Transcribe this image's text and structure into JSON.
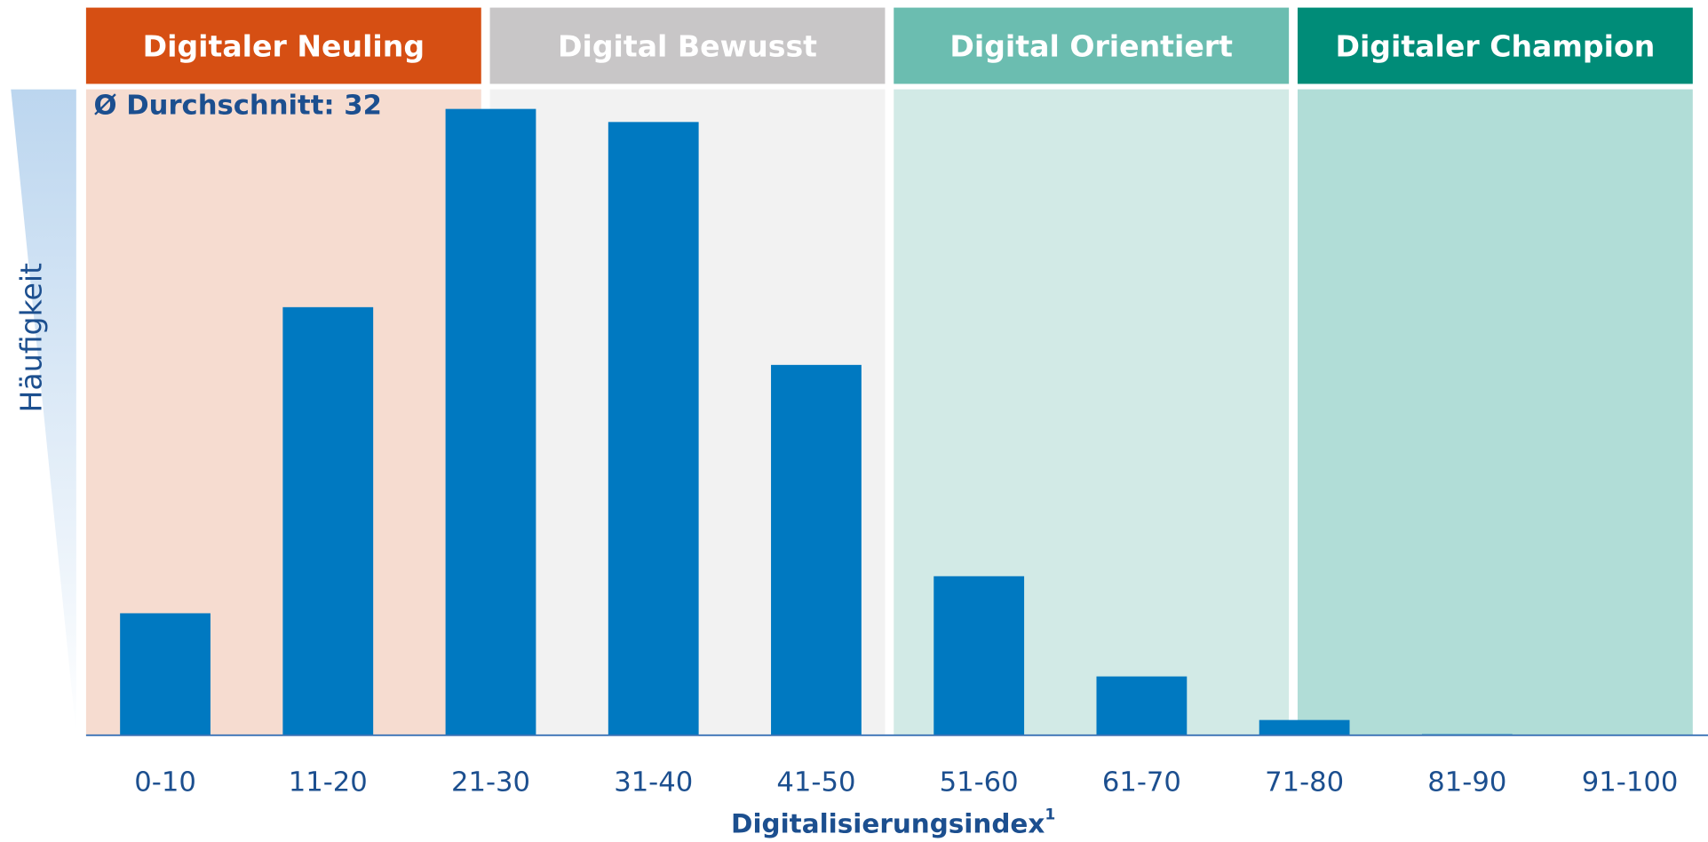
{
  "chart_data": {
    "type": "bar",
    "categories": [
      "0-10",
      "11-20",
      "21-30",
      "31-40",
      "41-50",
      "51-60",
      "61-70",
      "71-80",
      "81-90",
      "91-100"
    ],
    "values": [
      112,
      393,
      575,
      563,
      340,
      146,
      54,
      14,
      1,
      0
    ],
    "color": "#0079c1",
    "ylim": [
      0,
      600
    ],
    "y_label": "Häufigkeit",
    "x_label": "Digitalisierungsindex",
    "x_label_footnote": "1",
    "annotation": "Ø Durchschnitt: 32",
    "segments": [
      {
        "name": "Digitaler Neuling",
        "color": "#d64f13",
        "background": "#f6dcd0"
      },
      {
        "name": "Digital Bewusst",
        "color": "#c8c6c7",
        "background": "#f2f2f2"
      },
      {
        "name": "Digital Orientiert",
        "color": "#6bbdb0",
        "background": "#d2eae6"
      },
      {
        "name": "Digitaler Champion",
        "color": "#008c78",
        "background": "#b1ddd7"
      }
    ]
  }
}
